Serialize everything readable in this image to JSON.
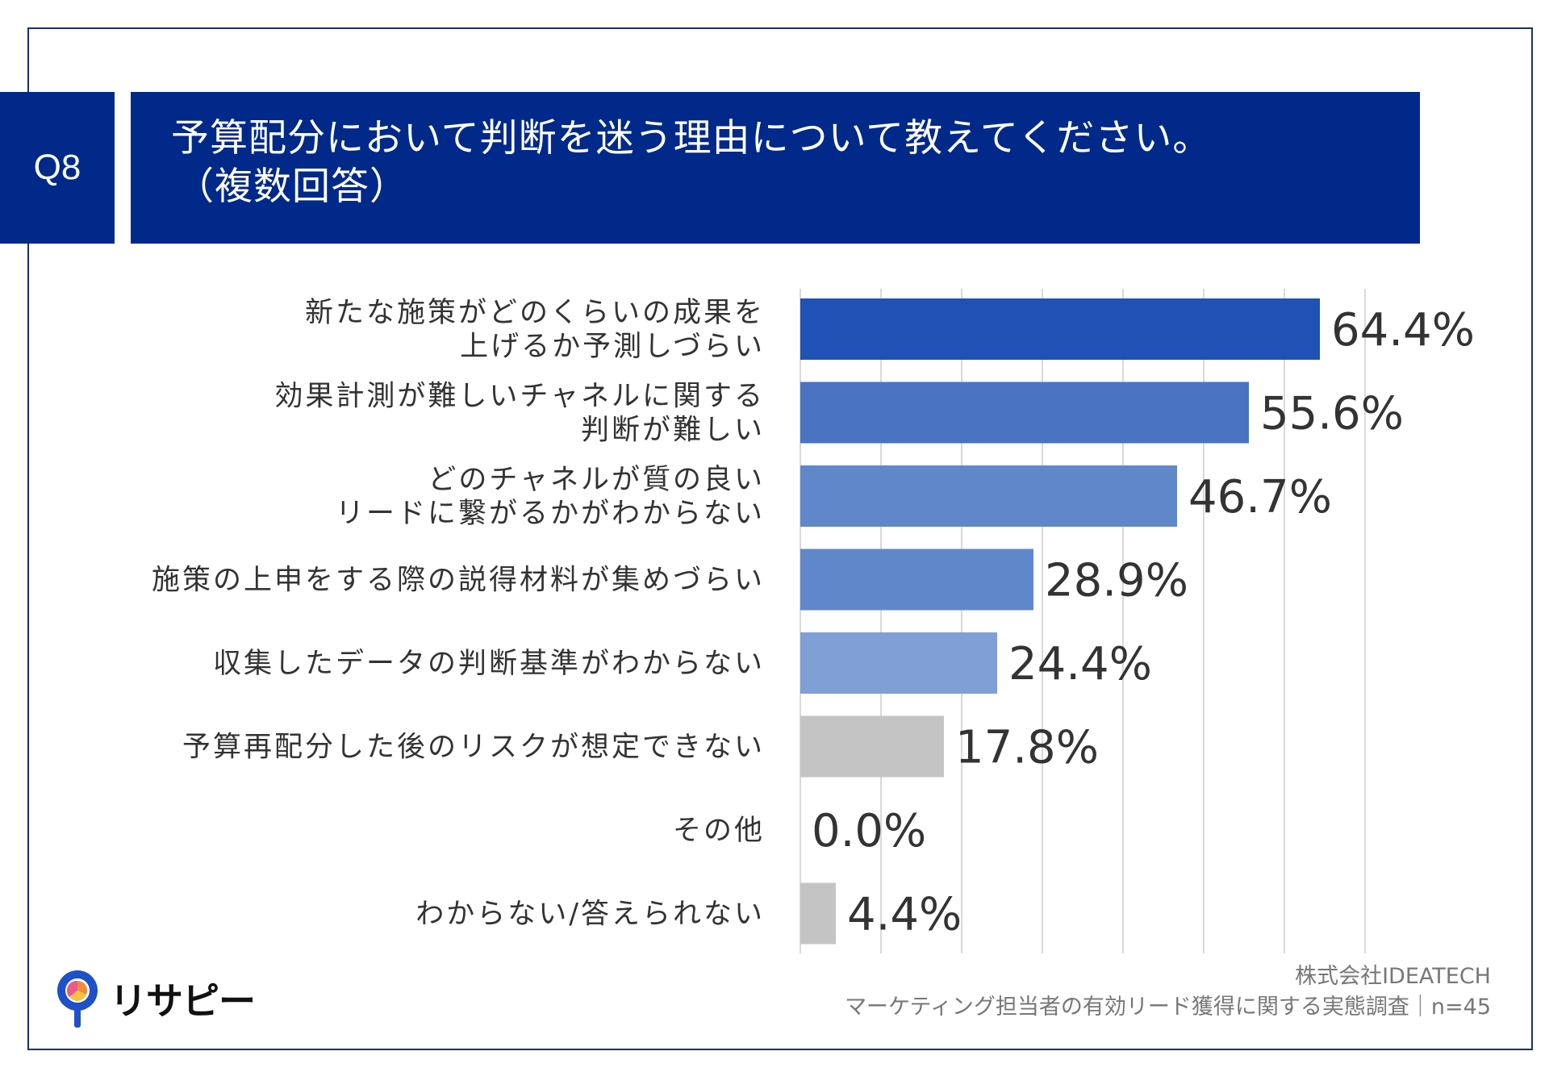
{
  "header": {
    "badge": "Q8",
    "title_line1": "予算配分において判断を迷う理由について教えてください。",
    "title_line2": "（複数回答）"
  },
  "chart_data": {
    "type": "bar",
    "orientation": "horizontal",
    "categories": [
      [
        "新たな施策がどのくらいの成果を",
        "上げるか予測しづらい"
      ],
      [
        "効果計測が難しいチャネルに関する",
        "判断が難しい"
      ],
      [
        "どのチャネルが質の良い",
        "リードに繋がるかがわからない"
      ],
      [
        "施策の上申をする際の説得材料が集めづらい"
      ],
      [
        "収集したデータの判断基準がわからない"
      ],
      [
        "予算再配分した後のリスクが想定できない"
      ],
      [
        "その他"
      ],
      [
        "わからない/答えられない"
      ]
    ],
    "values": [
      64.4,
      55.6,
      46.7,
      28.9,
      24.4,
      17.8,
      0.0,
      4.4
    ],
    "value_labels": [
      "64.4%",
      "55.6%",
      "46.7%",
      "28.9%",
      "24.4%",
      "17.8%",
      "0.0%",
      "4.4%"
    ],
    "bar_colors": [
      "#2051b5",
      "#4a73c2",
      "#6187cb",
      "#6187cb",
      "#7f9fd5",
      "#c4c4c4",
      "#c4c4c4",
      "#c4c4c4"
    ],
    "xlim": [
      0,
      70
    ],
    "gridlines": [
      0,
      10,
      20,
      30,
      40,
      50,
      60,
      70
    ],
    "grid": true
  },
  "footer": {
    "company": "株式会社IDEATECH",
    "survey": "マーケティング担当者の有効リード獲得に関する実態調査｜n=45"
  },
  "logo": {
    "text": "リサピー",
    "icon": "pin-logo-icon"
  }
}
